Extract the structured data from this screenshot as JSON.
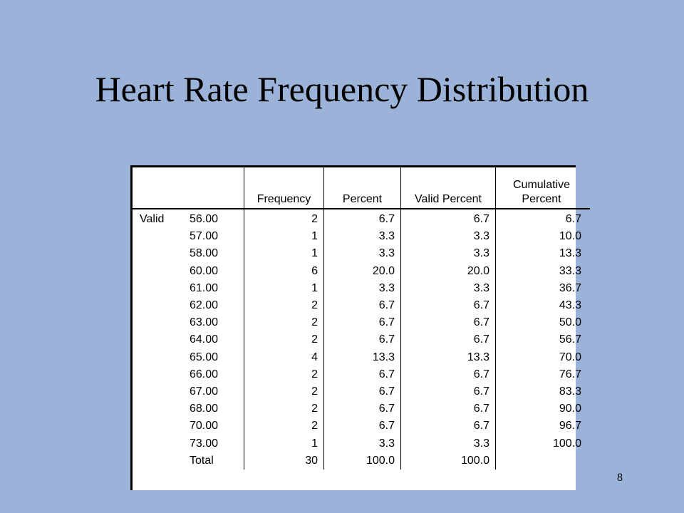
{
  "slide": {
    "title": "Heart Rate Frequency Distribution",
    "page_number": "8"
  },
  "table": {
    "headers": {
      "frequency": "Frequency",
      "percent": "Percent",
      "valid_percent": "Valid Percent",
      "cumulative_line1": "Cumulative",
      "cumulative_line2": "Percent"
    },
    "group_label": "Valid",
    "rows": [
      {
        "value": "56.00",
        "frequency": "2",
        "percent": "6.7",
        "valid_percent": "6.7",
        "cumulative": "6.7"
      },
      {
        "value": "57.00",
        "frequency": "1",
        "percent": "3.3",
        "valid_percent": "3.3",
        "cumulative": "10.0"
      },
      {
        "value": "58.00",
        "frequency": "1",
        "percent": "3.3",
        "valid_percent": "3.3",
        "cumulative": "13.3"
      },
      {
        "value": "60.00",
        "frequency": "6",
        "percent": "20.0",
        "valid_percent": "20.0",
        "cumulative": "33.3"
      },
      {
        "value": "61.00",
        "frequency": "1",
        "percent": "3.3",
        "valid_percent": "3.3",
        "cumulative": "36.7"
      },
      {
        "value": "62.00",
        "frequency": "2",
        "percent": "6.7",
        "valid_percent": "6.7",
        "cumulative": "43.3"
      },
      {
        "value": "63.00",
        "frequency": "2",
        "percent": "6.7",
        "valid_percent": "6.7",
        "cumulative": "50.0"
      },
      {
        "value": "64.00",
        "frequency": "2",
        "percent": "6.7",
        "valid_percent": "6.7",
        "cumulative": "56.7"
      },
      {
        "value": "65.00",
        "frequency": "4",
        "percent": "13.3",
        "valid_percent": "13.3",
        "cumulative": "70.0"
      },
      {
        "value": "66.00",
        "frequency": "2",
        "percent": "6.7",
        "valid_percent": "6.7",
        "cumulative": "76.7"
      },
      {
        "value": "67.00",
        "frequency": "2",
        "percent": "6.7",
        "valid_percent": "6.7",
        "cumulative": "83.3"
      },
      {
        "value": "68.00",
        "frequency": "2",
        "percent": "6.7",
        "valid_percent": "6.7",
        "cumulative": "90.0"
      },
      {
        "value": "70.00",
        "frequency": "2",
        "percent": "6.7",
        "valid_percent": "6.7",
        "cumulative": "96.7"
      },
      {
        "value": "73.00",
        "frequency": "1",
        "percent": "3.3",
        "valid_percent": "3.3",
        "cumulative": "100.0"
      }
    ],
    "total": {
      "label": "Total",
      "frequency": "30",
      "percent": "100.0",
      "valid_percent": "100.0",
      "cumulative": ""
    }
  }
}
